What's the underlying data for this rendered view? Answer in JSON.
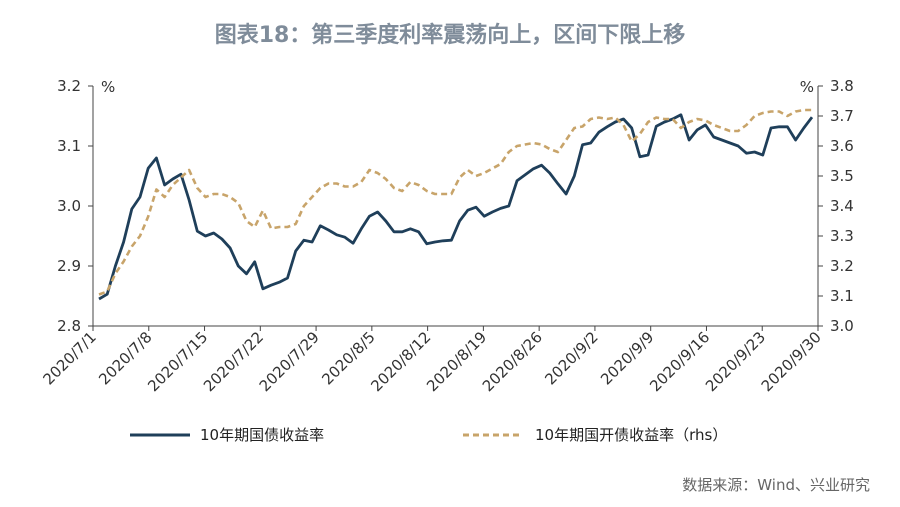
{
  "chart_data": {
    "type": "line",
    "title": "图表18：第三季度利率震荡向上，区间下限上移",
    "y_left": {
      "unit": "%",
      "ylim": [
        2.8,
        3.2
      ],
      "ticks": [
        "3.2",
        "3.1",
        "3.0",
        "2.9",
        "2.8"
      ]
    },
    "y_right": {
      "unit": "%",
      "ylim": [
        3.0,
        3.8
      ],
      "ticks": [
        "3.8",
        "3.7",
        "3.6",
        "3.5",
        "3.4",
        "3.3",
        "3.2",
        "3.1",
        "3.0"
      ]
    },
    "x_ticks": [
      "2020/7/1",
      "2020/7/8",
      "2020/7/15",
      "2020/7/22",
      "2020/7/29",
      "2020/8/5",
      "2020/8/12",
      "2020/8/19",
      "2020/8/26",
      "2020/9/2",
      "2020/9/9",
      "2020/9/16",
      "2020/9/23",
      "2020/9/30"
    ],
    "series": [
      {
        "name": "10年期国债收益率",
        "axis": "left",
        "color": "#1f3f5a",
        "style": "solid",
        "values": [
          2.845,
          2.853,
          2.9,
          2.94,
          2.995,
          3.015,
          3.063,
          3.08,
          3.035,
          3.045,
          3.053,
          3.01,
          2.958,
          2.95,
          2.955,
          2.945,
          2.93,
          2.9,
          2.887,
          2.907,
          2.862,
          2.868,
          2.873,
          2.88,
          2.925,
          2.943,
          2.94,
          2.967,
          2.96,
          2.952,
          2.948,
          2.938,
          2.962,
          2.983,
          2.99,
          2.975,
          2.957,
          2.957,
          2.962,
          2.957,
          2.937,
          2.94,
          2.942,
          2.943,
          2.975,
          2.993,
          2.998,
          2.983,
          2.99,
          2.996,
          3.0,
          3.042,
          3.052,
          3.062,
          3.068,
          3.055,
          3.037,
          3.02,
          3.05,
          3.102,
          3.105,
          3.123,
          3.132,
          3.14,
          3.145,
          3.13,
          3.082,
          3.085,
          3.133,
          3.14,
          3.145,
          3.152,
          3.11,
          3.127,
          3.135,
          3.115,
          3.11,
          3.105,
          3.1,
          3.088,
          3.09,
          3.085,
          3.13,
          3.132,
          3.132,
          3.11,
          3.13,
          3.148
        ]
      },
      {
        "name": "10年期国开债收益率（rhs）",
        "axis": "right",
        "color": "#c8a46a",
        "style": "dashed",
        "values": [
          3.105,
          3.115,
          3.175,
          3.215,
          3.265,
          3.3,
          3.365,
          3.455,
          3.43,
          3.47,
          3.495,
          3.52,
          3.46,
          3.43,
          3.44,
          3.44,
          3.43,
          3.41,
          3.35,
          3.33,
          3.385,
          3.325,
          3.33,
          3.33,
          3.34,
          3.4,
          3.43,
          3.46,
          3.475,
          3.475,
          3.465,
          3.465,
          3.48,
          3.52,
          3.51,
          3.49,
          3.46,
          3.45,
          3.48,
          3.47,
          3.45,
          3.44,
          3.44,
          3.44,
          3.495,
          3.52,
          3.5,
          3.51,
          3.525,
          3.54,
          3.58,
          3.6,
          3.605,
          3.61,
          3.605,
          3.59,
          3.58,
          3.62,
          3.66,
          3.665,
          3.69,
          3.695,
          3.69,
          3.695,
          3.67,
          3.615,
          3.64,
          3.68,
          3.695,
          3.69,
          3.69,
          3.66,
          3.68,
          3.69,
          3.685,
          3.67,
          3.66,
          3.65,
          3.65,
          3.67,
          3.7,
          3.71,
          3.715,
          3.715,
          3.7,
          3.715,
          3.72,
          3.72
        ]
      }
    ],
    "source": "数据来源：Wind、兴业研究"
  }
}
